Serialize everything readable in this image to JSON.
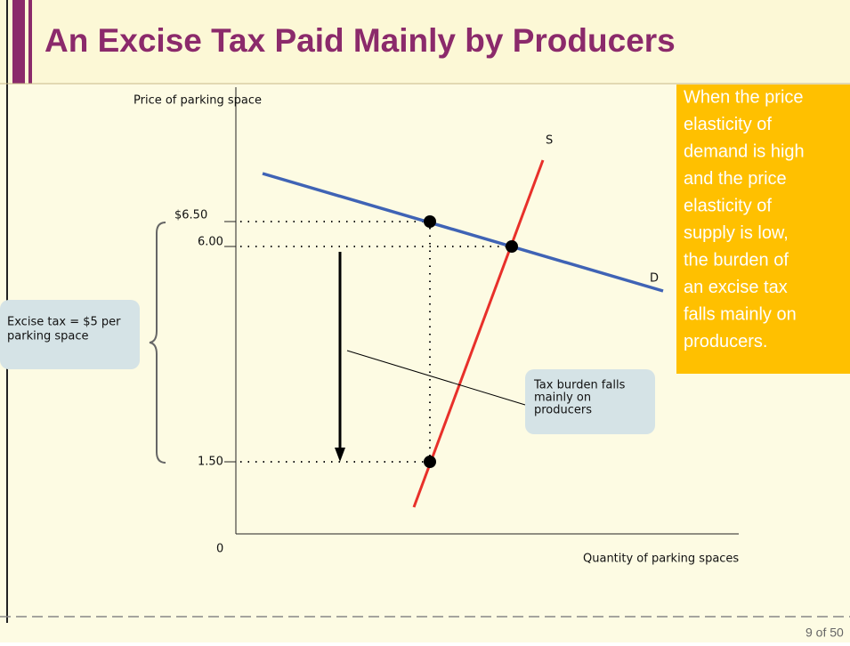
{
  "title": "An Excise Tax Paid Mainly by Producers",
  "axes": {
    "y_label": "Price of parking space",
    "x_label": "Quantity of parking spaces",
    "origin": "0"
  },
  "curves": {
    "supply": "S",
    "demand": "D"
  },
  "price_labels": [
    "$6.50",
    "6.00",
    "1.50"
  ],
  "tax_box": [
    "Excise tax = $5 per",
    "parking space"
  ],
  "callout": [
    "Tax burden falls",
    "mainly on",
    "producers"
  ],
  "note": [
    "When the price",
    "elasticity of",
    "demand is high",
    "and the price",
    "elasticity of",
    "supply is low,",
    "the burden of",
    "an excise tax",
    "falls mainly on",
    "producers."
  ],
  "page": "9 of 50"
}
